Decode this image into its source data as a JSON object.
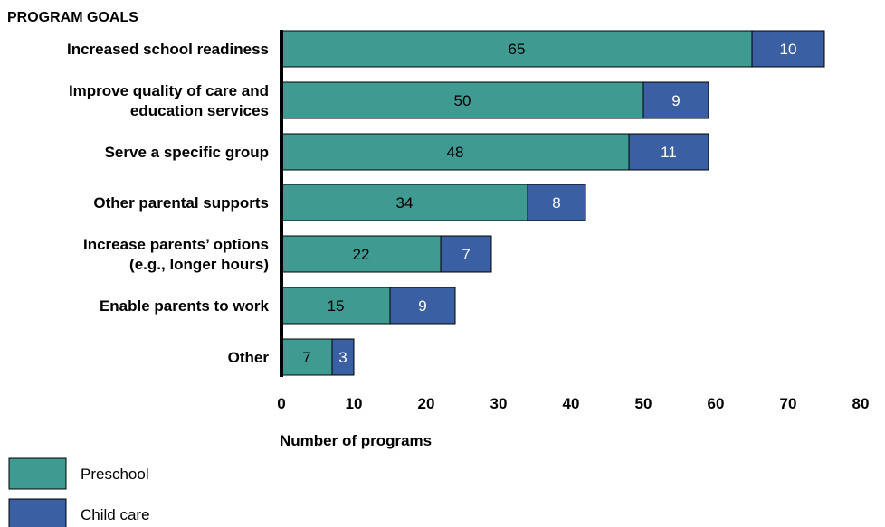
{
  "chart_data": {
    "type": "bar",
    "orientation": "horizontal",
    "stacked": true,
    "title": "PROGRAM GOALS",
    "xlabel": "Number of programs",
    "ylabel": "",
    "xlim": [
      0,
      80
    ],
    "xticks": [
      0,
      10,
      20,
      30,
      40,
      50,
      60,
      70,
      80
    ],
    "grid": false,
    "legend_position": "bottom-left",
    "categories": [
      [
        "Increased school readiness"
      ],
      [
        "Improve quality of care and",
        "education services"
      ],
      [
        "Serve a specific group"
      ],
      [
        "Other parental supports"
      ],
      [
        "Increase parents’ options",
        "(e.g., longer hours)"
      ],
      [
        "Enable parents to work"
      ],
      [
        "Other"
      ]
    ],
    "series": [
      {
        "name": "Preschool",
        "values": [
          65,
          50,
          48,
          34,
          22,
          15,
          7
        ],
        "color": "#3f9b91",
        "label_color": "#000000"
      },
      {
        "name": "Child care",
        "values": [
          10,
          9,
          11,
          8,
          7,
          9,
          3
        ],
        "color": "#3a5fa3",
        "label_color": "#ffffff"
      }
    ]
  }
}
